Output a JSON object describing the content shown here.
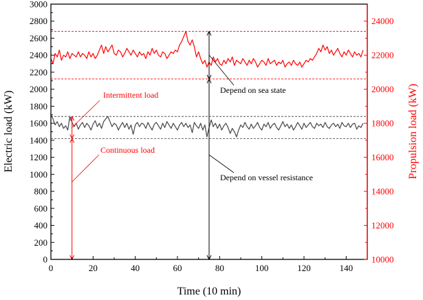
{
  "chart_data": {
    "type": "line",
    "xlabel": "Time (10 min)",
    "ylabel_left": "Electric load (kW)",
    "ylabel_right": "Propulsion load (kW)",
    "xlim": [
      0,
      150
    ],
    "ylim_left": [
      0,
      3000
    ],
    "ylim_right": [
      10000,
      25000
    ],
    "x_ticks": [
      0,
      20,
      40,
      60,
      80,
      100,
      120,
      140
    ],
    "y_ticks_left": [
      0,
      200,
      400,
      600,
      800,
      1000,
      1200,
      1400,
      1600,
      1800,
      2000,
      2200,
      2400,
      2600,
      2800,
      3000
    ],
    "y_ticks_right": [
      10000,
      12000,
      14000,
      16000,
      18000,
      20000,
      22000,
      24000
    ],
    "grid": false,
    "series": [
      {
        "axis": "left",
        "color": "#444444",
        "x_start": 0,
        "x_step": 1,
        "values": [
          1700,
          1650,
          1580,
          1620,
          1560,
          1600,
          1540,
          1570,
          1520,
          1680,
          1610,
          1560,
          1600,
          1530,
          1580,
          1610,
          1550,
          1600,
          1570,
          1520,
          1590,
          1630,
          1560,
          1600,
          1540,
          1620,
          1650,
          1680,
          1620,
          1560,
          1600,
          1580,
          1520,
          1570,
          1610,
          1550,
          1600,
          1530,
          1580,
          1470,
          1580,
          1610,
          1560,
          1600,
          1590,
          1540,
          1610,
          1560,
          1520,
          1590,
          1610,
          1570,
          1530,
          1600,
          1550,
          1620,
          1580,
          1540,
          1600,
          1560,
          1520,
          1580,
          1610,
          1560,
          1600,
          1550,
          1580,
          1490,
          1610,
          1570,
          1540,
          1600,
          1520,
          1580,
          1440,
          1550,
          1640,
          1560,
          1600,
          1540,
          1590,
          1520,
          1570,
          1600,
          1550,
          1480,
          1540,
          1500,
          1440,
          1520,
          1580,
          1550,
          1610,
          1560,
          1530,
          1590,
          1540,
          1570,
          1610,
          1550,
          1520,
          1590,
          1560,
          1610,
          1540,
          1580,
          1600,
          1550,
          1520,
          1570,
          1620,
          1560,
          1590,
          1540,
          1580,
          1520,
          1560,
          1610,
          1570,
          1530,
          1600,
          1550,
          1580,
          1610,
          1560,
          1540,
          1600,
          1570,
          1590,
          1550,
          1610,
          1560,
          1540,
          1580,
          1600,
          1560,
          1590,
          1540,
          1610,
          1570,
          1560,
          1600,
          1550,
          1590,
          1600,
          1530,
          1570,
          1550,
          1600
        ]
      },
      {
        "axis": "right",
        "color": "#ff0000",
        "x_start": 0,
        "x_step": 1,
        "values": [
          21800,
          21500,
          22100,
          21900,
          22300,
          21700,
          22000,
          21900,
          22200,
          21800,
          22100,
          22000,
          21900,
          22200,
          21900,
          22100,
          22000,
          21800,
          22200,
          21900,
          22100,
          21800,
          22000,
          22300,
          22600,
          22100,
          22500,
          22200,
          22400,
          22600,
          22100,
          22000,
          22300,
          22200,
          21900,
          22100,
          22400,
          22200,
          22000,
          22300,
          22100,
          21900,
          22200,
          22000,
          22100,
          21800,
          22200,
          22000,
          22400,
          22100,
          22300,
          22000,
          21900,
          22200,
          22100,
          21800,
          22000,
          22200,
          22100,
          22300,
          22200,
          22600,
          22800,
          23100,
          23400,
          22800,
          22600,
          22900,
          22500,
          21900,
          22200,
          21800,
          21500,
          21700,
          21300,
          21600,
          21400,
          21900,
          21600,
          21800,
          21500,
          21400,
          21700,
          21500,
          21800,
          21600,
          21900,
          21400,
          21700,
          21600,
          21500,
          21800,
          21600,
          21400,
          21700,
          21500,
          21800,
          21600,
          21300,
          21500,
          21700,
          21600,
          21400,
          21800,
          21500,
          21600,
          21700,
          21400,
          21600,
          21500,
          21700,
          21300,
          21500,
          21600,
          21400,
          21700,
          21500,
          21400,
          21600,
          21300,
          21500,
          21700,
          21600,
          21800,
          21700,
          21900,
          22100,
          22400,
          22200,
          22600,
          22300,
          22500,
          22100,
          22300,
          22000,
          22200,
          22400,
          22100,
          21900,
          22200,
          22000,
          22300,
          22100,
          21900,
          22200,
          22000,
          22100,
          21900,
          22300
        ]
      }
    ],
    "reference_lines": [
      {
        "axis": "right",
        "value": 23400,
        "color": "#ff0000"
      },
      {
        "axis": "right",
        "value": 20600,
        "color": "#ff0000"
      },
      {
        "axis": "left",
        "value": 1680,
        "color": "#555555"
      },
      {
        "axis": "left",
        "value": 1420,
        "color": "#555555"
      }
    ],
    "annotations": {
      "intermittent": "Intermittent  load",
      "continuous": "Continuous load",
      "sea_state": "Depend  on sea state",
      "vessel_resistance": "Depend  on vessel resistance"
    },
    "colors": {
      "left_axis": "#000000",
      "right_axis": "#ff0000"
    }
  }
}
